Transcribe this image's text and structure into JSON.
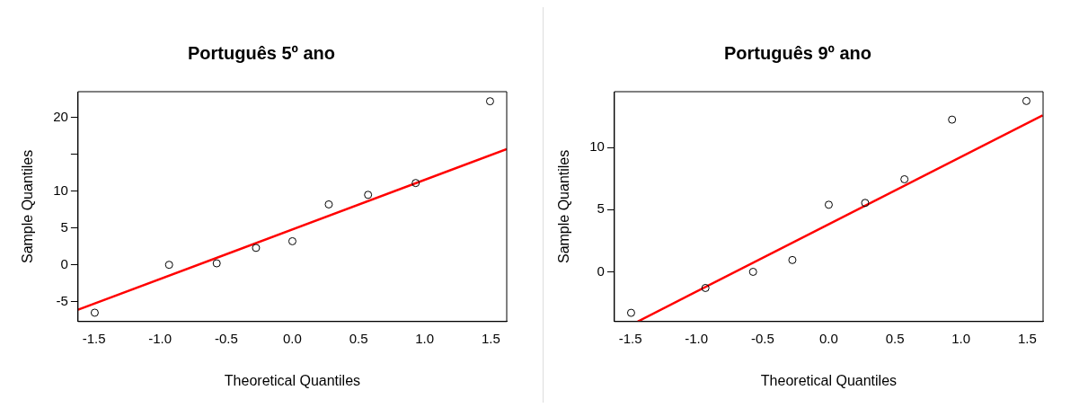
{
  "chart_data": [
    {
      "type": "scatter",
      "title": "Português 5º ano",
      "xlabel": "Theoretical Quantiles",
      "ylabel": "Sample Quantiles",
      "xlim": [
        -1.62,
        1.62
      ],
      "xticks": [
        {
          "value": -1.5,
          "label": "-1.5"
        },
        {
          "value": -1.0,
          "label": "-1.0"
        },
        {
          "value": -0.5,
          "label": "-0.5"
        },
        {
          "value": 0.0,
          "label": "0.0"
        },
        {
          "value": 0.5,
          "label": "0.5"
        },
        {
          "value": 1.0,
          "label": "1.0"
        },
        {
          "value": 1.5,
          "label": "1.5"
        }
      ],
      "ylim": [
        -7.7,
        23.5
      ],
      "yticks": [
        -5,
        0,
        5,
        10,
        {
          "value": 15,
          "label": null
        },
        20
      ],
      "grid": false,
      "legend": false,
      "series": [
        {
          "marker": "circle",
          "color": "#000000",
          "x": [
            -1.494,
            -0.932,
            -0.572,
            -0.275,
            0,
            0.275,
            0.572,
            0.932,
            1.494
          ],
          "values": [
            -6.5,
            0,
            0.2,
            2.3,
            3.2,
            8.2,
            9.5,
            11.1,
            22.2
          ]
        },
        {
          "type": "line",
          "marker": "none",
          "color": "#ff0000",
          "x": [
            -1.62,
            1.62
          ],
          "values": [
            -6.1,
            15.7
          ]
        }
      ]
    },
    {
      "type": "scatter",
      "title": "Português 9º ano",
      "xlabel": "Theoretical Quantiles",
      "ylabel": "Sample Quantiles",
      "xlim": [
        -1.62,
        1.62
      ],
      "xticks": [
        {
          "value": -1.5,
          "label": "-1.5"
        },
        {
          "value": -1.0,
          "label": "-1.0"
        },
        {
          "value": -0.5,
          "label": "-0.5"
        },
        {
          "value": 0.0,
          "label": "0.0"
        },
        {
          "value": 0.5,
          "label": "0.5"
        },
        {
          "value": 1.0,
          "label": "1.0"
        },
        {
          "value": 1.5,
          "label": "1.5"
        }
      ],
      "ylim": [
        -4.0,
        14.5
      ],
      "yticks": [
        0,
        5,
        10
      ],
      "grid": false,
      "legend": false,
      "series": [
        {
          "marker": "circle",
          "color": "#000000",
          "x": [
            -1.494,
            -0.932,
            -0.572,
            -0.275,
            0,
            0.275,
            0.572,
            0.932,
            1.494
          ],
          "values": [
            -3.3,
            -1.3,
            0,
            0.95,
            5.4,
            5.55,
            7.45,
            12.25,
            13.75
          ]
        },
        {
          "type": "line",
          "marker": "none",
          "color": "#ff0000",
          "x": [
            -1.444,
            1.617
          ],
          "values": [
            -4.0,
            12.6
          ]
        }
      ]
    }
  ]
}
